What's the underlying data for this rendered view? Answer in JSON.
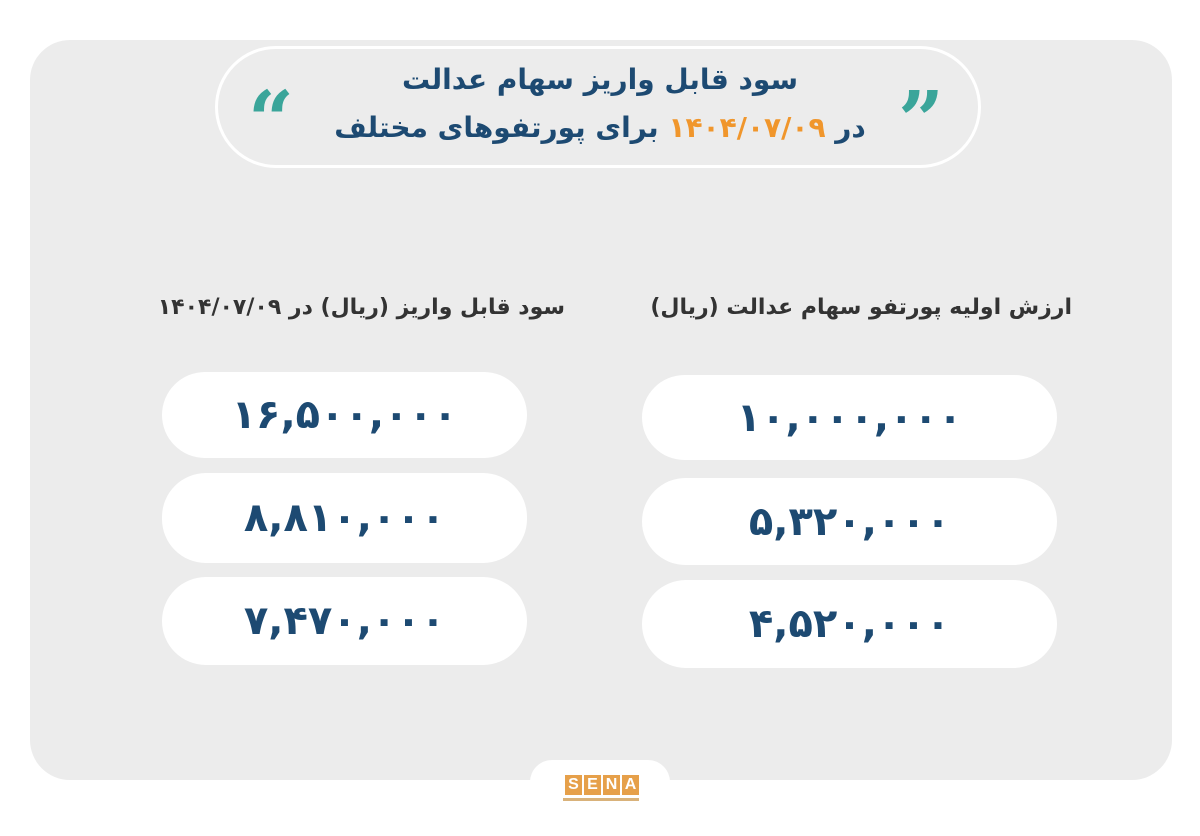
{
  "title": {
    "line1": "سود قابل واریز سهام عدالت",
    "line2_prefix": "در",
    "date": "۱۴۰۴/۰۷/۰۹",
    "line2_suffix": "برای پورتفوهای مختلف"
  },
  "colors": {
    "primary": "#1d4a72",
    "accent": "#f0962c",
    "quote": "#3aa59a",
    "panel": "#ececec"
  },
  "columns": {
    "initial_value_header": "ارزش اولیه پورتفو سهام عدالت (ریال)",
    "payable_profit_header": "سود قابل واریز (ریال) در ۱۴۰۴/۰۷/۰۹"
  },
  "rows": [
    {
      "initial_value": "۱۰,۰۰۰,۰۰۰",
      "payable_profit": "۱۶,۵۰۰,۰۰۰"
    },
    {
      "initial_value": "۵,۳۲۰,۰۰۰",
      "payable_profit": "۸,۸۱۰,۰۰۰"
    },
    {
      "initial_value": "۴,۵۲۰,۰۰۰",
      "payable_profit": "۷,۴۷۰,۰۰۰"
    }
  ],
  "logo": {
    "text": "SENA",
    "letters": [
      "S",
      "E",
      "N",
      "A"
    ]
  }
}
